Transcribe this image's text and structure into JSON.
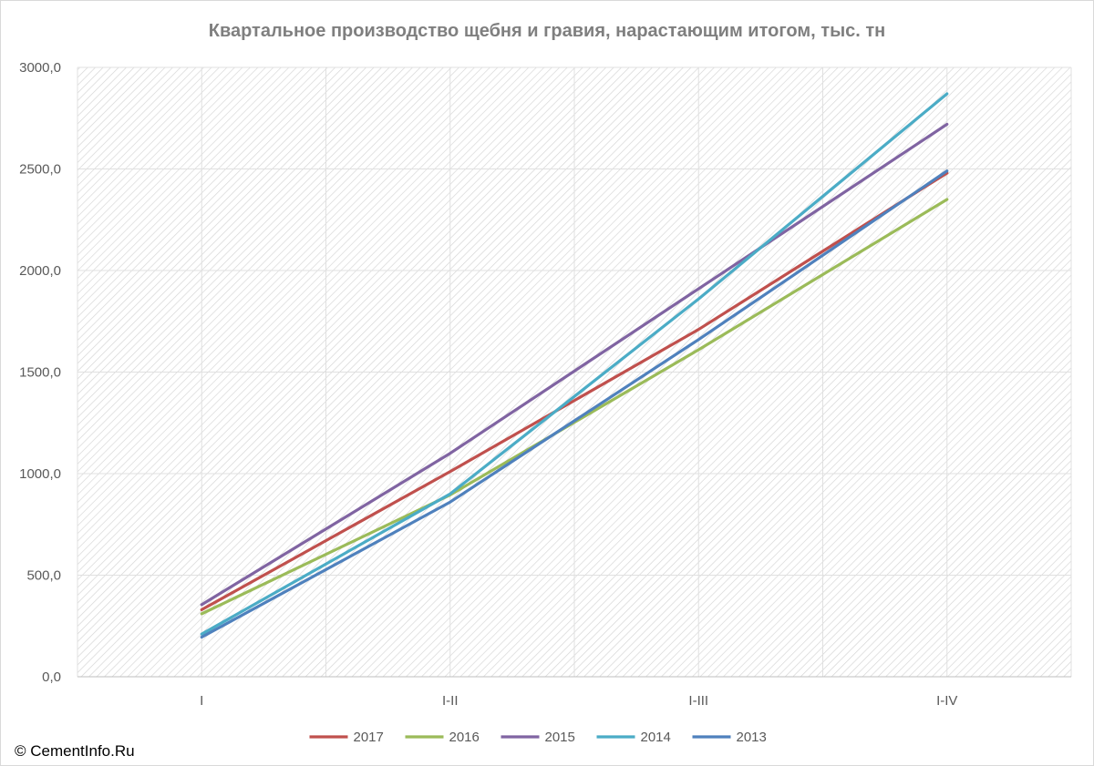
{
  "chart_data": {
    "type": "line",
    "title": "Квартальное производство щебня и гравия, нарастающим итогом, тыс. тн",
    "categories": [
      "I",
      "I-II",
      "I-III",
      "I-IV"
    ],
    "y_tick_labels": [
      "0,0",
      "500,0",
      "1000,0",
      "1500,0",
      "2000,0",
      "2500,0",
      "3000,0"
    ],
    "y_ticks": [
      0,
      500,
      1000,
      1500,
      2000,
      2500,
      3000
    ],
    "ylim": [
      0,
      3000
    ],
    "grid": true,
    "legend_position": "bottom",
    "series": [
      {
        "name": "2017",
        "color": "#c0504d",
        "values": [
          330,
          1010,
          1710,
          2480
        ]
      },
      {
        "name": "2016",
        "color": "#9bbb59",
        "values": [
          310,
          895,
          1610,
          2350
        ]
      },
      {
        "name": "2015",
        "color": "#8064a2",
        "values": [
          355,
          1100,
          1910,
          2720
        ]
      },
      {
        "name": "2014",
        "color": "#4bacc6",
        "values": [
          210,
          900,
          1860,
          2870
        ]
      },
      {
        "name": "2013",
        "color": "#4f81bd",
        "values": [
          195,
          860,
          1660,
          2490
        ]
      }
    ]
  },
  "copyright": "© CementInfo.Ru"
}
